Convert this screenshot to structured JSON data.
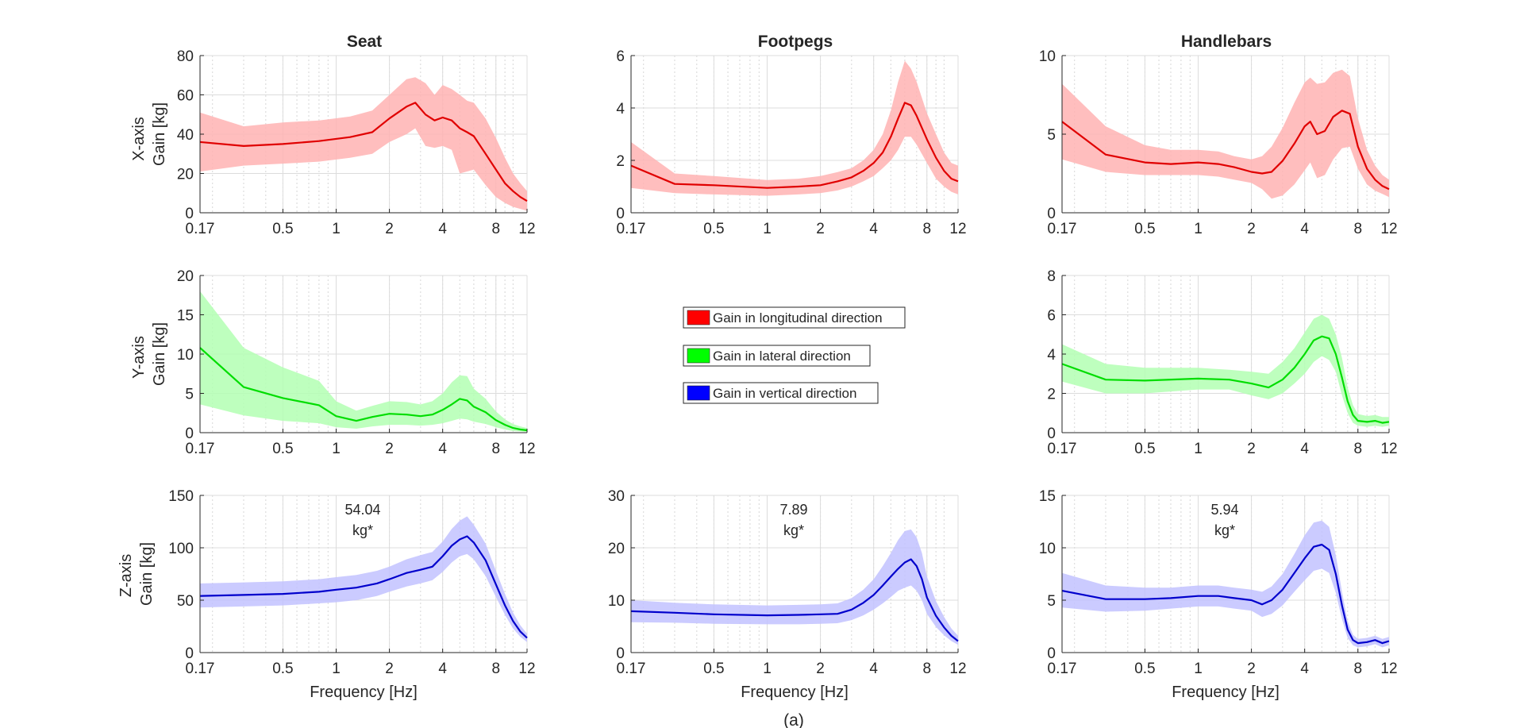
{
  "figure": {
    "caption": "(a)",
    "column_titles": [
      "Seat",
      "Footpegs",
      "Handlebars"
    ],
    "row_labels": [
      "X-axis",
      "Y-axis",
      "Z-axis"
    ],
    "gain_label": "Gain [kg]",
    "xlabel": "Frequency [Hz]"
  },
  "legend": [
    {
      "label": "Gain in longitudinal direction",
      "color": "#ff0000"
    },
    {
      "label": "Gain in lateral direction",
      "color": "#00ff00"
    },
    {
      "label": "Gain in vertical direction",
      "color": "#0000ff"
    }
  ],
  "chart_data": [
    {
      "id": "seat-x",
      "type": "line",
      "title": "Seat",
      "row": "X-axis",
      "xscale": "log",
      "xlim": [
        0.17,
        12
      ],
      "xticks": [
        0.17,
        0.5,
        1,
        2,
        4,
        8,
        12
      ],
      "xtick_labels": [
        "0.17",
        "0.5",
        "1",
        "2",
        "4",
        "8",
        "12"
      ],
      "ylim": [
        0,
        80
      ],
      "yticks": [
        0,
        20,
        40,
        60,
        80
      ],
      "ylabel": "Gain [kg]",
      "xlabel": "",
      "color": "#e00000",
      "band_color": "#ffb3b3",
      "x": [
        0.17,
        0.3,
        0.5,
        0.8,
        1.2,
        1.6,
        2,
        2.5,
        2.8,
        3.2,
        3.6,
        4,
        4.5,
        5,
        5.5,
        6,
        7,
        8,
        9,
        10,
        11,
        12
      ],
      "y": [
        36,
        34,
        35,
        36.5,
        38.5,
        41,
        48,
        54,
        56,
        50,
        47,
        48.5,
        47,
        43,
        41,
        39,
        30,
        22,
        15,
        11,
        8,
        6
      ],
      "upper": [
        51,
        44,
        46,
        47,
        49,
        52,
        60,
        68,
        69,
        66,
        60,
        65,
        63,
        60,
        57,
        56,
        48,
        38,
        28,
        20,
        15,
        11
      ],
      "lower": [
        21,
        24,
        25,
        26,
        28,
        30,
        36,
        40,
        43,
        34,
        33,
        34,
        32,
        20,
        21,
        22,
        14,
        8,
        5,
        3,
        2,
        1
      ]
    },
    {
      "id": "footpegs-x",
      "type": "line",
      "title": "Footpegs",
      "row": "X-axis",
      "xscale": "log",
      "xlim": [
        0.17,
        12
      ],
      "xticks": [
        0.17,
        0.5,
        1,
        2,
        4,
        8,
        12
      ],
      "xtick_labels": [
        "0.17",
        "0.5",
        "1",
        "2",
        "4",
        "8",
        "12"
      ],
      "ylim": [
        0,
        6
      ],
      "yticks": [
        0,
        2,
        4,
        6
      ],
      "ylabel": "",
      "xlabel": "",
      "color": "#e00000",
      "band_color": "#ffb3b3",
      "x": [
        0.17,
        0.3,
        0.5,
        1,
        1.5,
        2,
        2.5,
        3,
        3.5,
        4,
        4.5,
        5,
        5.5,
        6,
        6.5,
        7,
        8,
        9,
        10,
        11,
        12
      ],
      "y": [
        1.8,
        1.1,
        1.05,
        0.95,
        1.0,
        1.05,
        1.2,
        1.35,
        1.6,
        1.9,
        2.3,
        2.9,
        3.6,
        4.2,
        4.1,
        3.7,
        2.8,
        2.1,
        1.6,
        1.3,
        1.2
      ],
      "upper": [
        2.7,
        1.5,
        1.4,
        1.25,
        1.3,
        1.4,
        1.55,
        1.7,
        2.0,
        2.4,
        3.0,
        3.9,
        5.0,
        5.8,
        5.5,
        5.0,
        3.8,
        3.0,
        2.3,
        1.9,
        1.8
      ],
      "lower": [
        0.95,
        0.75,
        0.7,
        0.65,
        0.7,
        0.75,
        0.85,
        1.0,
        1.2,
        1.4,
        1.7,
        2.0,
        2.4,
        2.9,
        2.9,
        2.6,
        1.9,
        1.3,
        1.0,
        0.8,
        0.7
      ]
    },
    {
      "id": "handlebars-x",
      "type": "line",
      "title": "Handlebars",
      "row": "X-axis",
      "xscale": "log",
      "xlim": [
        0.17,
        12
      ],
      "xticks": [
        0.17,
        0.5,
        1,
        2,
        4,
        8,
        12
      ],
      "xtick_labels": [
        "0.17",
        "0.5",
        "1",
        "2",
        "4",
        "8",
        "12"
      ],
      "ylim": [
        0,
        10
      ],
      "yticks": [
        0,
        5,
        10
      ],
      "ylabel": "",
      "xlabel": "",
      "color": "#e00000",
      "band_color": "#ffb3b3",
      "x": [
        0.17,
        0.3,
        0.5,
        0.7,
        1,
        1.3,
        1.6,
        2,
        2.3,
        2.6,
        3,
        3.5,
        4,
        4.3,
        4.7,
        5.2,
        5.8,
        6.5,
        7.2,
        8,
        9,
        10,
        11,
        12
      ],
      "y": [
        5.8,
        3.7,
        3.2,
        3.1,
        3.2,
        3.1,
        2.9,
        2.6,
        2.5,
        2.6,
        3.3,
        4.4,
        5.5,
        5.8,
        5.0,
        5.2,
        6.1,
        6.5,
        6.3,
        4.2,
        2.8,
        2.1,
        1.7,
        1.5
      ],
      "upper": [
        8.2,
        5.5,
        4.3,
        4.0,
        4.0,
        3.9,
        3.6,
        3.4,
        3.6,
        4.2,
        5.4,
        7.0,
        8.3,
        8.6,
        8.2,
        8.3,
        8.9,
        9.1,
        8.7,
        6.0,
        4.0,
        3.0,
        2.4,
        2.1
      ],
      "lower": [
        3.4,
        2.6,
        2.4,
        2.4,
        2.4,
        2.3,
        2.1,
        1.9,
        1.5,
        0.9,
        1.1,
        1.8,
        2.7,
        3.2,
        2.2,
        2.4,
        3.4,
        4.1,
        4.2,
        2.8,
        1.8,
        1.4,
        1.2,
        1.0
      ]
    },
    {
      "id": "seat-y",
      "type": "line",
      "title": "",
      "row": "Y-axis",
      "xscale": "log",
      "xlim": [
        0.17,
        12
      ],
      "xticks": [
        0.17,
        0.5,
        1,
        2,
        4,
        8,
        12
      ],
      "xtick_labels": [
        "0.17",
        "0.5",
        "1",
        "2",
        "4",
        "8",
        "12"
      ],
      "ylim": [
        0,
        20
      ],
      "yticks": [
        0,
        5,
        10,
        15,
        20
      ],
      "ylabel": "Gain [kg]",
      "xlabel": "",
      "color": "#00dd00",
      "band_color": "#b3ffb3",
      "x": [
        0.17,
        0.3,
        0.5,
        0.8,
        1,
        1.3,
        1.6,
        2,
        2.5,
        3,
        3.5,
        4,
        4.5,
        5,
        5.5,
        6,
        7,
        8,
        9,
        10,
        11,
        12
      ],
      "y": [
        10.8,
        5.8,
        4.4,
        3.5,
        2.1,
        1.5,
        2.0,
        2.4,
        2.3,
        2.1,
        2.3,
        2.9,
        3.6,
        4.3,
        4.1,
        3.3,
        2.6,
        1.6,
        1.0,
        0.6,
        0.4,
        0.3
      ],
      "upper": [
        18.0,
        10.8,
        8.3,
        6.6,
        4.0,
        2.8,
        3.4,
        4.0,
        3.9,
        3.6,
        4.0,
        5.0,
        6.4,
        7.3,
        7.2,
        5.6,
        4.3,
        2.7,
        1.7,
        1.1,
        0.8,
        0.6
      ],
      "lower": [
        3.6,
        2.2,
        1.5,
        1.2,
        0.7,
        0.5,
        0.8,
        1.0,
        1.0,
        0.9,
        1.0,
        1.2,
        1.5,
        1.8,
        1.7,
        1.4,
        1.1,
        0.7,
        0.4,
        0.2,
        0.15,
        0.1
      ]
    },
    {
      "id": "handlebars-y",
      "type": "line",
      "title": "",
      "row": "Y-axis",
      "xscale": "log",
      "xlim": [
        0.17,
        12
      ],
      "xticks": [
        0.17,
        0.5,
        1,
        2,
        4,
        8,
        12
      ],
      "xtick_labels": [
        "0.17",
        "0.5",
        "1",
        "2",
        "4",
        "8",
        "12"
      ],
      "ylim": [
        0,
        8
      ],
      "yticks": [
        0,
        2,
        4,
        6,
        8
      ],
      "ylabel": "",
      "xlabel": "",
      "color": "#00dd00",
      "band_color": "#b3ffb3",
      "x": [
        0.17,
        0.3,
        0.5,
        1,
        1.5,
        2,
        2.5,
        3,
        3.5,
        4,
        4.5,
        5,
        5.5,
        6,
        6.5,
        7,
        7.5,
        8,
        9,
        10,
        11,
        12
      ],
      "y": [
        3.5,
        2.7,
        2.65,
        2.75,
        2.7,
        2.5,
        2.3,
        2.7,
        3.3,
        4.0,
        4.7,
        4.9,
        4.8,
        4.0,
        2.8,
        1.6,
        0.9,
        0.6,
        0.55,
        0.6,
        0.5,
        0.55
      ],
      "upper": [
        4.5,
        3.5,
        3.3,
        3.3,
        3.2,
        3.1,
        3.0,
        3.6,
        4.3,
        5.1,
        5.8,
        6.0,
        5.8,
        5.0,
        3.8,
        2.3,
        1.4,
        0.95,
        0.85,
        0.9,
        0.8,
        0.8
      ],
      "lower": [
        2.6,
        2.0,
        2.0,
        2.2,
        2.2,
        1.9,
        1.7,
        2.0,
        2.5,
        3.0,
        3.6,
        3.9,
        3.7,
        3.1,
        1.9,
        1.0,
        0.5,
        0.35,
        0.3,
        0.35,
        0.3,
        0.35
      ]
    },
    {
      "id": "seat-z",
      "type": "line",
      "title": "",
      "row": "Z-axis",
      "xscale": "log",
      "xlim": [
        0.17,
        12
      ],
      "xticks": [
        0.17,
        0.5,
        1,
        2,
        4,
        8,
        12
      ],
      "xtick_labels": [
        "0.17",
        "0.5",
        "1",
        "2",
        "4",
        "8",
        "12"
      ],
      "ylim": [
        0,
        150
      ],
      "yticks": [
        0,
        50,
        100,
        150
      ],
      "ylabel": "Gain [kg]",
      "xlabel": "Frequency [Hz]",
      "color": "#0000cc",
      "band_color": "#c2c2ff",
      "annotation": [
        "54.04",
        "kg*"
      ],
      "x": [
        0.17,
        0.3,
        0.5,
        0.8,
        1,
        1.3,
        1.7,
        2,
        2.5,
        3,
        3.5,
        4,
        4.5,
        5,
        5.5,
        6,
        7,
        8,
        9,
        10,
        11,
        12
      ],
      "y": [
        54,
        55,
        56,
        58,
        60,
        62,
        66,
        70,
        76,
        79,
        82,
        92,
        102,
        108,
        111,
        105,
        88,
        65,
        45,
        30,
        20,
        14
      ],
      "upper": [
        66,
        67,
        68,
        70,
        72,
        74,
        78,
        82,
        89,
        93,
        96,
        106,
        118,
        126,
        130,
        122,
        104,
        78,
        56,
        38,
        26,
        18
      ],
      "lower": [
        43,
        44,
        45,
        47,
        48,
        50,
        54,
        58,
        63,
        66,
        69,
        77,
        86,
        92,
        94,
        89,
        73,
        53,
        36,
        23,
        15,
        10
      ]
    },
    {
      "id": "footpegs-z",
      "type": "line",
      "title": "",
      "row": "Z-axis",
      "xscale": "log",
      "xlim": [
        0.17,
        12
      ],
      "xticks": [
        0.17,
        0.5,
        1,
        2,
        4,
        8,
        12
      ],
      "xtick_labels": [
        "0.17",
        "0.5",
        "1",
        "2",
        "4",
        "8",
        "12"
      ],
      "ylim": [
        0,
        30
      ],
      "yticks": [
        0,
        10,
        20,
        30
      ],
      "ylabel": "",
      "xlabel": "Frequency [Hz]",
      "color": "#0000cc",
      "band_color": "#c2c2ff",
      "annotation": [
        "7.89",
        "kg*"
      ],
      "x": [
        0.17,
        0.3,
        0.5,
        1,
        1.5,
        2,
        2.5,
        3,
        3.5,
        4,
        4.5,
        5,
        5.5,
        6,
        6.5,
        7,
        7.5,
        8,
        9,
        10,
        11,
        12
      ],
      "y": [
        7.9,
        7.6,
        7.3,
        7.1,
        7.2,
        7.3,
        7.4,
        8.2,
        9.5,
        11.0,
        12.8,
        14.5,
        16.0,
        17.2,
        17.8,
        16.5,
        14.0,
        10.5,
        7.0,
        4.8,
        3.2,
        2.2
      ],
      "upper": [
        10.0,
        9.5,
        9.2,
        9.0,
        9.1,
        9.2,
        9.4,
        10.4,
        12.0,
        14.0,
        16.5,
        19.0,
        21.5,
        23.2,
        23.5,
        22.0,
        19.0,
        14.5,
        9.8,
        6.8,
        4.6,
        3.2
      ],
      "lower": [
        5.8,
        5.7,
        5.5,
        5.4,
        5.4,
        5.5,
        5.6,
        6.2,
        7.1,
        8.2,
        9.4,
        10.6,
        11.8,
        12.4,
        12.8,
        11.8,
        10.0,
        7.4,
        4.9,
        3.3,
        2.2,
        1.5
      ]
    },
    {
      "id": "handlebars-z",
      "type": "line",
      "title": "",
      "row": "Z-axis",
      "xscale": "log",
      "xlim": [
        0.17,
        12
      ],
      "xticks": [
        0.17,
        0.5,
        1,
        2,
        4,
        8,
        12
      ],
      "xtick_labels": [
        "0.17",
        "0.5",
        "1",
        "2",
        "4",
        "8",
        "12"
      ],
      "ylim": [
        0,
        15
      ],
      "yticks": [
        0,
        5,
        10,
        15
      ],
      "ylabel": "",
      "xlabel": "Frequency [Hz]",
      "color": "#0000cc",
      "band_color": "#c2c2ff",
      "annotation": [
        "5.94",
        "kg*"
      ],
      "x": [
        0.17,
        0.3,
        0.5,
        0.7,
        1,
        1.3,
        1.6,
        2,
        2.3,
        2.6,
        3,
        3.5,
        4,
        4.5,
        5,
        5.5,
        6,
        6.5,
        7,
        7.5,
        8,
        9,
        10,
        11,
        12
      ],
      "y": [
        5.9,
        5.1,
        5.1,
        5.2,
        5.4,
        5.4,
        5.2,
        5.0,
        4.6,
        5.0,
        6.0,
        7.6,
        9.0,
        10.1,
        10.3,
        9.8,
        7.5,
        4.5,
        2.2,
        1.2,
        0.9,
        1.0,
        1.2,
        0.9,
        1.1
      ],
      "upper": [
        7.6,
        6.4,
        6.2,
        6.2,
        6.4,
        6.4,
        6.2,
        6.0,
        5.8,
        6.3,
        7.5,
        9.4,
        11.2,
        12.4,
        12.6,
        12.0,
        9.3,
        5.8,
        3.0,
        1.7,
        1.3,
        1.4,
        1.6,
        1.3,
        1.5
      ],
      "lower": [
        4.3,
        3.9,
        4.0,
        4.2,
        4.4,
        4.4,
        4.2,
        4.0,
        3.4,
        3.7,
        4.5,
        5.8,
        6.9,
        7.8,
        8.0,
        7.6,
        5.7,
        3.2,
        1.4,
        0.7,
        0.5,
        0.6,
        0.8,
        0.5,
        0.7
      ]
    }
  ]
}
